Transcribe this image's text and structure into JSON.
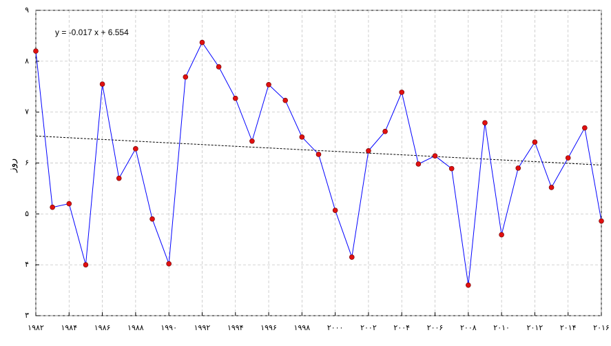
{
  "chart_data": {
    "type": "line",
    "ylabel": "روز",
    "annotation": "y = -0.017 x + 6.554",
    "x": [
      1982,
      1983,
      1984,
      1985,
      1986,
      1987,
      1988,
      1989,
      1990,
      1991,
      1992,
      1993,
      1994,
      1995,
      1996,
      1997,
      1998,
      1999,
      2000,
      2001,
      2002,
      2003,
      2004,
      2005,
      2006,
      2007,
      2008,
      2009,
      2010,
      2011,
      2012,
      2013,
      2014,
      2015,
      2016
    ],
    "values": [
      8.2,
      5.13,
      5.2,
      4.0,
      7.55,
      5.7,
      6.28,
      4.9,
      4.02,
      7.69,
      8.37,
      7.89,
      7.27,
      6.43,
      7.54,
      7.23,
      6.51,
      6.17,
      5.07,
      4.15,
      6.24,
      6.62,
      7.39,
      5.98,
      6.14,
      5.89,
      3.6,
      6.79,
      4.59,
      5.9,
      6.41,
      5.52,
      6.1,
      6.69,
      4.86
    ],
    "color": "#0000ff",
    "marker_color": "#e01010",
    "trendline": {
      "x": [
        1982,
        2016
      ],
      "values": [
        6.53,
        5.96
      ],
      "color": "#000000"
    },
    "xlim": [
      1982,
      2016
    ],
    "xticks": [
      {
        "value": 1982,
        "label": "۱۹۸۲"
      },
      {
        "value": 1984,
        "label": "۱۹۸۴"
      },
      {
        "value": 1986,
        "label": "۱۹۸۶"
      },
      {
        "value": 1988,
        "label": "۱۹۸۸"
      },
      {
        "value": 1990,
        "label": "۱۹۹۰"
      },
      {
        "value": 1992,
        "label": "۱۹۹۲"
      },
      {
        "value": 1994,
        "label": "۱۹۹۴"
      },
      {
        "value": 1996,
        "label": "۱۹۹۶"
      },
      {
        "value": 1998,
        "label": "۱۹۹۸"
      },
      {
        "value": 2000,
        "label": "۲۰۰۰"
      },
      {
        "value": 2002,
        "label": "۲۰۰۲"
      },
      {
        "value": 2004,
        "label": "۲۰۰۴"
      },
      {
        "value": 2006,
        "label": "۲۰۰۶"
      },
      {
        "value": 2008,
        "label": "۲۰۰۸"
      },
      {
        "value": 2010,
        "label": "۲۰۱۰"
      },
      {
        "value": 2012,
        "label": "۲۰۱۲"
      },
      {
        "value": 2014,
        "label": "۲۰۱۴"
      },
      {
        "value": 2016,
        "label": "۲۰۱۶"
      }
    ],
    "ylim": [
      3,
      9
    ],
    "yticks": [
      {
        "value": 3,
        "label": "۳"
      },
      {
        "value": 4,
        "label": "۴"
      },
      {
        "value": 5,
        "label": "۵"
      },
      {
        "value": 6,
        "label": "۶"
      },
      {
        "value": 7,
        "label": "۷"
      },
      {
        "value": 8,
        "label": "۸"
      },
      {
        "value": 9,
        "label": "۹"
      }
    ],
    "grid": true
  }
}
